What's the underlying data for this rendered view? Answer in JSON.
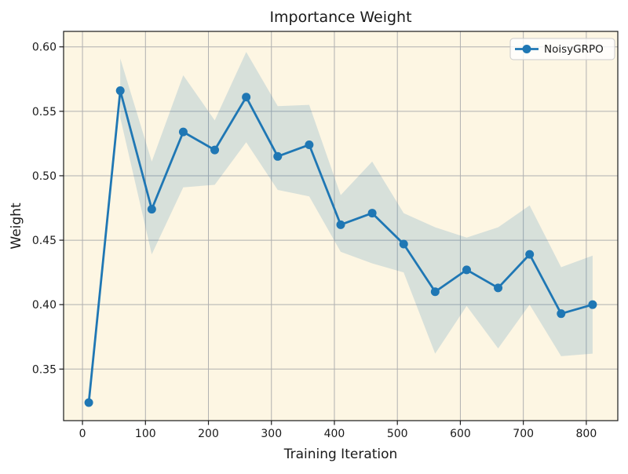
{
  "chart_data": {
    "type": "line",
    "title": "Importance Weight",
    "xlabel": "Training Iteration",
    "ylabel": "Weight",
    "xlim": [
      -30,
      850
    ],
    "ylim": [
      0.31,
      0.612
    ],
    "x_ticks": [
      0,
      100,
      200,
      300,
      400,
      500,
      600,
      700,
      800
    ],
    "y_ticks": [
      0.35,
      0.4,
      0.45,
      0.5,
      0.55,
      0.6
    ],
    "grid": true,
    "legend": {
      "position": "upper right",
      "entries": [
        {
          "label": "NoisyGRPO",
          "color": "#1f77b4",
          "marker": "circle"
        }
      ]
    },
    "series": [
      {
        "name": "NoisyGRPO",
        "color": "#1f77b4",
        "marker": "circle",
        "x": [
          10,
          60,
          110,
          160,
          210,
          260,
          310,
          360,
          410,
          460,
          510,
          560,
          610,
          660,
          710,
          760,
          810
        ],
        "y": [
          0.324,
          0.566,
          0.474,
          0.534,
          0.52,
          0.561,
          0.515,
          0.524,
          0.462,
          0.471,
          0.447,
          0.41,
          0.427,
          0.413,
          0.439,
          0.393,
          0.4
        ]
      }
    ],
    "confidence_band": {
      "series": "NoisyGRPO",
      "alpha": 0.17,
      "x": [
        60,
        110,
        160,
        210,
        260,
        310,
        360,
        410,
        460,
        510,
        560,
        610,
        660,
        710,
        760,
        810
      ],
      "upper": [
        0.591,
        0.511,
        0.578,
        0.543,
        0.596,
        0.554,
        0.555,
        0.485,
        0.511,
        0.471,
        0.46,
        0.452,
        0.46,
        0.477,
        0.429,
        0.438
      ],
      "lower": [
        0.545,
        0.439,
        0.491,
        0.493,
        0.526,
        0.489,
        0.484,
        0.441,
        0.432,
        0.425,
        0.362,
        0.399,
        0.366,
        0.4,
        0.36,
        0.362
      ]
    },
    "colors": {
      "figure_background": "#ffffff",
      "plot_background": "#fdf6e3",
      "grid": "#b0b0b0",
      "spine": "#1a1a1a",
      "line": "#1f77b4",
      "band": "#1f77b4",
      "tick": "#1a1a1a",
      "text": "#000000",
      "legend_background": "#ffffff",
      "legend_border": "#cccccc"
    }
  }
}
